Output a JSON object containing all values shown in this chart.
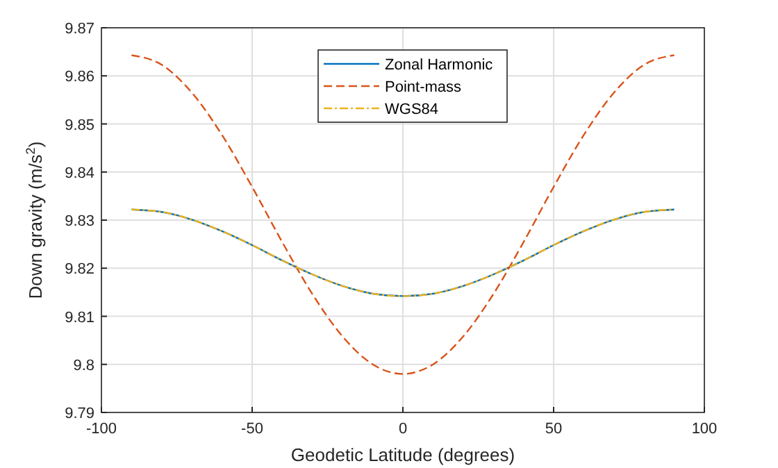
{
  "chart_data": {
    "type": "line",
    "xlabel": "Geodetic Latitude (degrees)",
    "ylabel": "Down gravity (m/s$^{2}$)",
    "x": [
      -90,
      -80,
      -70,
      -60,
      -50,
      -40,
      -30,
      -20,
      -10,
      0,
      10,
      20,
      30,
      40,
      50,
      60,
      70,
      80,
      90
    ],
    "series": [
      {
        "name": "Zonal Harmonic",
        "color": "#0072bd",
        "line_style": "solid",
        "values": [
          9.8322,
          9.8317,
          9.8301,
          9.8277,
          9.8248,
          9.8216,
          9.8187,
          9.8163,
          9.8147,
          9.8142,
          9.8147,
          9.8163,
          9.8187,
          9.8216,
          9.8248,
          9.8277,
          9.8301,
          9.8317,
          9.8322
        ]
      },
      {
        "name": "Point-mass",
        "color": "#d95319",
        "line_style": "dashed",
        "values": [
          9.8643,
          9.8623,
          9.8565,
          9.8477,
          9.8369,
          9.8254,
          9.8146,
          9.8058,
          9.8,
          9.798,
          9.8,
          9.8058,
          9.8146,
          9.8254,
          9.8369,
          9.8477,
          9.8565,
          9.8623,
          9.8643
        ]
      },
      {
        "name": "WGS84",
        "color": "#edb120",
        "line_style": "dashdot",
        "values": [
          9.8322,
          9.8317,
          9.8301,
          9.8277,
          9.8248,
          9.8216,
          9.8187,
          9.8163,
          9.8147,
          9.8142,
          9.8147,
          9.8163,
          9.8187,
          9.8216,
          9.8248,
          9.8277,
          9.8301,
          9.8317,
          9.8322
        ]
      }
    ],
    "xlim": [
      -100,
      100
    ],
    "xticks": [
      -100,
      -50,
      0,
      50,
      100
    ],
    "ylim": [
      9.79,
      9.87
    ],
    "yticks": [
      9.79,
      {
        "value": 9.8,
        "label": "9.8"
      },
      9.81,
      9.82,
      9.83,
      9.84,
      9.85,
      9.86,
      9.87
    ],
    "grid": true,
    "legend": "top"
  }
}
